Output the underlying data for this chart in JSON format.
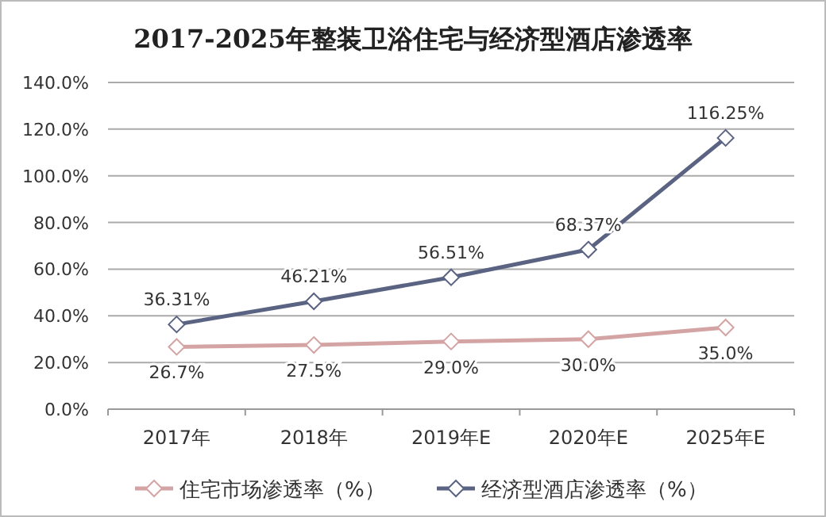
{
  "chart_data": {
    "type": "line",
    "title": "2017-2025年整装卫浴住宅与经济型酒店渗透率",
    "categories": [
      "2017年",
      "2018年",
      "2019年E",
      "2020年E",
      "2025年E"
    ],
    "series": [
      {
        "name": "住宅市场渗透率（%）",
        "color": "#d4a4a4",
        "values": [
          26.7,
          27.5,
          29.0,
          30.0,
          35.0
        ],
        "value_labels": [
          "26.7%",
          "27.5%",
          "29.0%",
          "30.0%",
          "35.0%"
        ]
      },
      {
        "name": "经济型酒店渗透率（%）",
        "color": "#5b6382",
        "values": [
          36.31,
          46.21,
          56.51,
          68.37,
          116.25
        ],
        "value_labels": [
          "36.31%",
          "46.21%",
          "56.51%",
          "68.37%",
          "116.25%"
        ]
      }
    ],
    "ylim": [
      0,
      140
    ],
    "yticks": [
      {
        "value": 0,
        "label": "0.0%"
      },
      {
        "value": 20,
        "label": "20.0%"
      },
      {
        "value": 40,
        "label": "40.0%"
      },
      {
        "value": 60,
        "label": "60.0%"
      },
      {
        "value": 80,
        "label": "80.0%"
      },
      {
        "value": 100,
        "label": "100.0%"
      },
      {
        "value": 120,
        "label": "120.0%"
      },
      {
        "value": 140,
        "label": "140.0%"
      }
    ],
    "grid": "y",
    "legend": "bottom",
    "marker": "diamond",
    "line_style": "solid"
  }
}
